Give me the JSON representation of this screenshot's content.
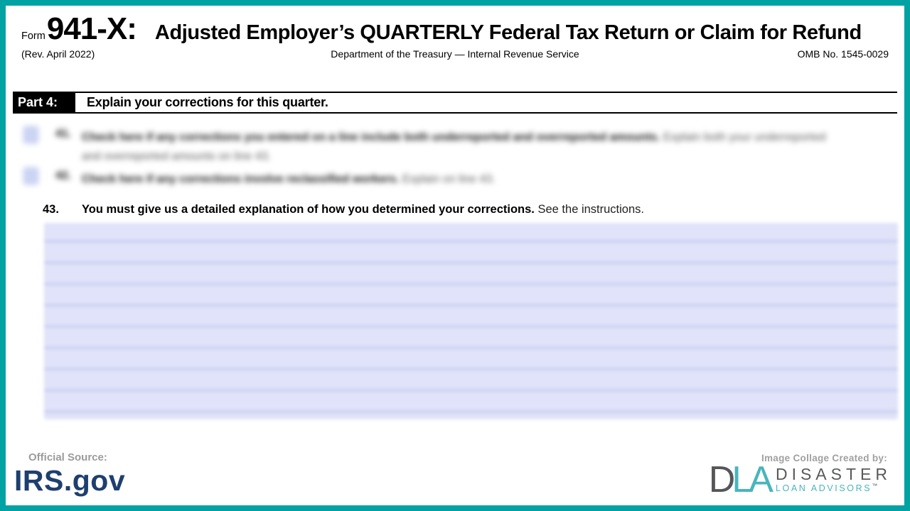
{
  "frame": {
    "border_color": "#00a2a3"
  },
  "header": {
    "form_word": "Form",
    "form_number": "941-X:",
    "title": "Adjusted Employer’s QUARTERLY Federal Tax Return or Claim for Refund",
    "revision": "(Rev. April 2022)",
    "department": "Department of the Treasury — Internal Revenue Service",
    "omb": "OMB No. 1545-0029"
  },
  "part4": {
    "label": "Part 4:",
    "heading": "Explain your corrections for this quarter."
  },
  "lines": {
    "line41": {
      "number": "41.",
      "bold": "Check here if any corrections you entered on a line include both underreported and overreported amounts.",
      "regular": " Explain both your underreported and overreported amounts on line 43."
    },
    "line42": {
      "number": "42.",
      "bold": "Check here if any corrections involve reclassified workers.",
      "regular": " Explain on line 43."
    },
    "line43": {
      "number": "43.",
      "bold": "You must give us a detailed explanation of how you determined your corrections.",
      "regular": " See the instructions."
    }
  },
  "entry_area": {
    "background": "#e0e3f9",
    "rule_color": "#ccd1f0"
  },
  "footer": {
    "source_label": "Official Source:",
    "source_name": "IRS.gov",
    "credit_label": "Image Collage Created by:",
    "logo": {
      "mark_d": "D",
      "mark_la": "LA",
      "line1": "DISASTER",
      "line2": "LOAN ADVISORS",
      "trademark": "™",
      "gray": "#58595b",
      "teal": "#48b5bc"
    }
  }
}
